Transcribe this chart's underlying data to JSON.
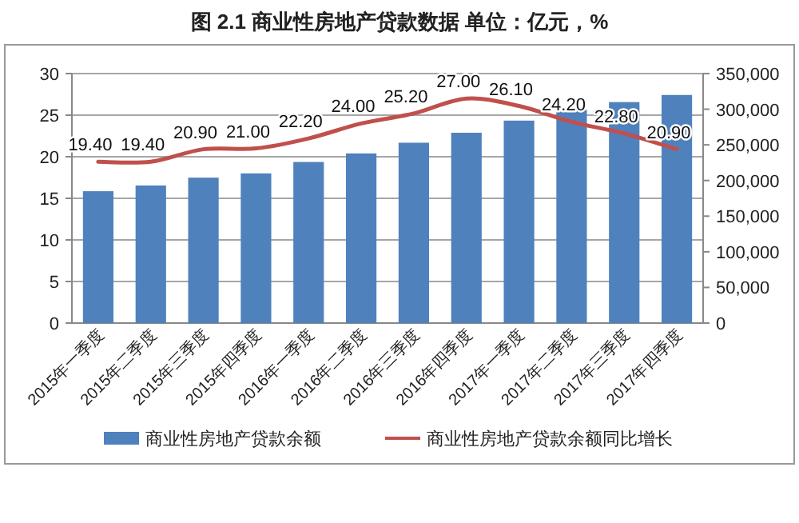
{
  "chart_data": {
    "type": "bar",
    "title": "图 2.1 商业性房地产贷款数据 单位：亿元，%",
    "categories": [
      "2015年一季度",
      "2015年二季度",
      "2015年三季度",
      "2015年四季度",
      "2016年一季度",
      "2016年二季度",
      "2016年三季度",
      "2016年四季度",
      "2017年一季度",
      "2017年二季度",
      "2017年三季度",
      "2017年四季度"
    ],
    "series": [
      {
        "name": "商业性房地产贷款余额",
        "axis": "y2",
        "color": "#4f81bd",
        "values": [
          185000,
          193000,
          204000,
          210000,
          226000,
          238000,
          253000,
          267000,
          284000,
          299000,
          310000,
          320000
        ]
      },
      {
        "name": "商业性房地产贷款余额同比增长",
        "type": "line",
        "axis": "y",
        "color": "#c0504d",
        "data_labels": true,
        "values": [
          19.4,
          19.4,
          20.9,
          21.0,
          22.2,
          24.0,
          25.2,
          27.0,
          26.1,
          24.2,
          22.8,
          20.9
        ],
        "value_labels": [
          "19.40",
          "19.40",
          "20.90",
          "21.00",
          "22.20",
          "24.00",
          "25.20",
          "27.00",
          "26.10",
          "24.20",
          "22.80",
          "20.90"
        ]
      }
    ],
    "ylim": [
      0,
      30
    ],
    "yticks": [
      0,
      5,
      10,
      15,
      20,
      25,
      30
    ],
    "y2lim": [
      0,
      350000
    ],
    "y2ticks": [
      {
        "value": 0,
        "label": "0"
      },
      {
        "value": 50000,
        "label": "50,000"
      },
      {
        "value": 100000,
        "label": "100,000"
      },
      {
        "value": 150000,
        "label": "150,000"
      },
      {
        "value": 200000,
        "label": "200,000"
      },
      {
        "value": 250000,
        "label": "250,000"
      },
      {
        "value": 300000,
        "label": "300,000"
      },
      {
        "value": 350000,
        "label": "350,000"
      }
    ],
    "grid": "y",
    "legend": "bottom"
  }
}
